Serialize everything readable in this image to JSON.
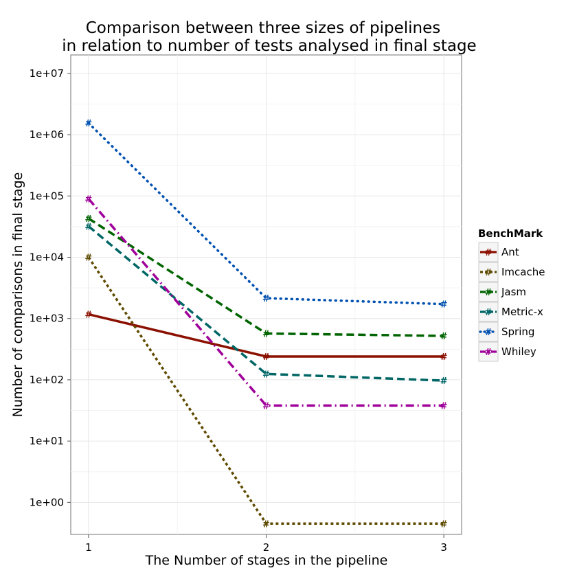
{
  "chart_data": {
    "type": "line",
    "title": [
      "Comparison between three sizes of pipelines",
      "in relation to number of tests analysed in final stage"
    ],
    "xlabel": "The Number of stages in the pipeline",
    "ylabel": "Number of comparisons in final stage",
    "x": [
      1,
      2,
      3
    ],
    "x_tick_labels": [
      "1",
      "2",
      "3"
    ],
    "y_scale": "log",
    "y_tick_values": [
      1,
      10,
      100,
      1000,
      10000,
      100000,
      1000000,
      10000000
    ],
    "y_tick_labels": [
      "1e+00",
      "1e+01",
      "1e+02",
      "1e+03",
      "1e+04",
      "1e+05",
      "1e+06",
      "1e+07"
    ],
    "ylim": [
      0.3,
      20000000
    ],
    "grid": true,
    "legend": {
      "title": "BenchMark",
      "position": "right"
    },
    "marker_symbol": "#",
    "series": [
      {
        "name": "Ant",
        "color": "#8B1000",
        "dash": "solid",
        "values": [
          1170,
          240,
          240
        ]
      },
      {
        "name": "Imcache",
        "color": "#5E4A00",
        "dash": "dashed",
        "values": [
          10000,
          0.45,
          0.45
        ]
      },
      {
        "name": "Jasm",
        "color": "#006400",
        "dash": "longdash",
        "values": [
          43000,
          570,
          520
        ]
      },
      {
        "name": "Metric-x",
        "color": "#006666",
        "dash": "longdash",
        "values": [
          32000,
          125,
          97
        ]
      },
      {
        "name": "Spring",
        "color": "#0050B0",
        "dash": "dotted",
        "values": [
          1550000,
          2150,
          1720
        ]
      },
      {
        "name": "Whiley",
        "color": "#A0009A",
        "dash": "dashdot",
        "values": [
          90000,
          38,
          38
        ]
      }
    ]
  }
}
